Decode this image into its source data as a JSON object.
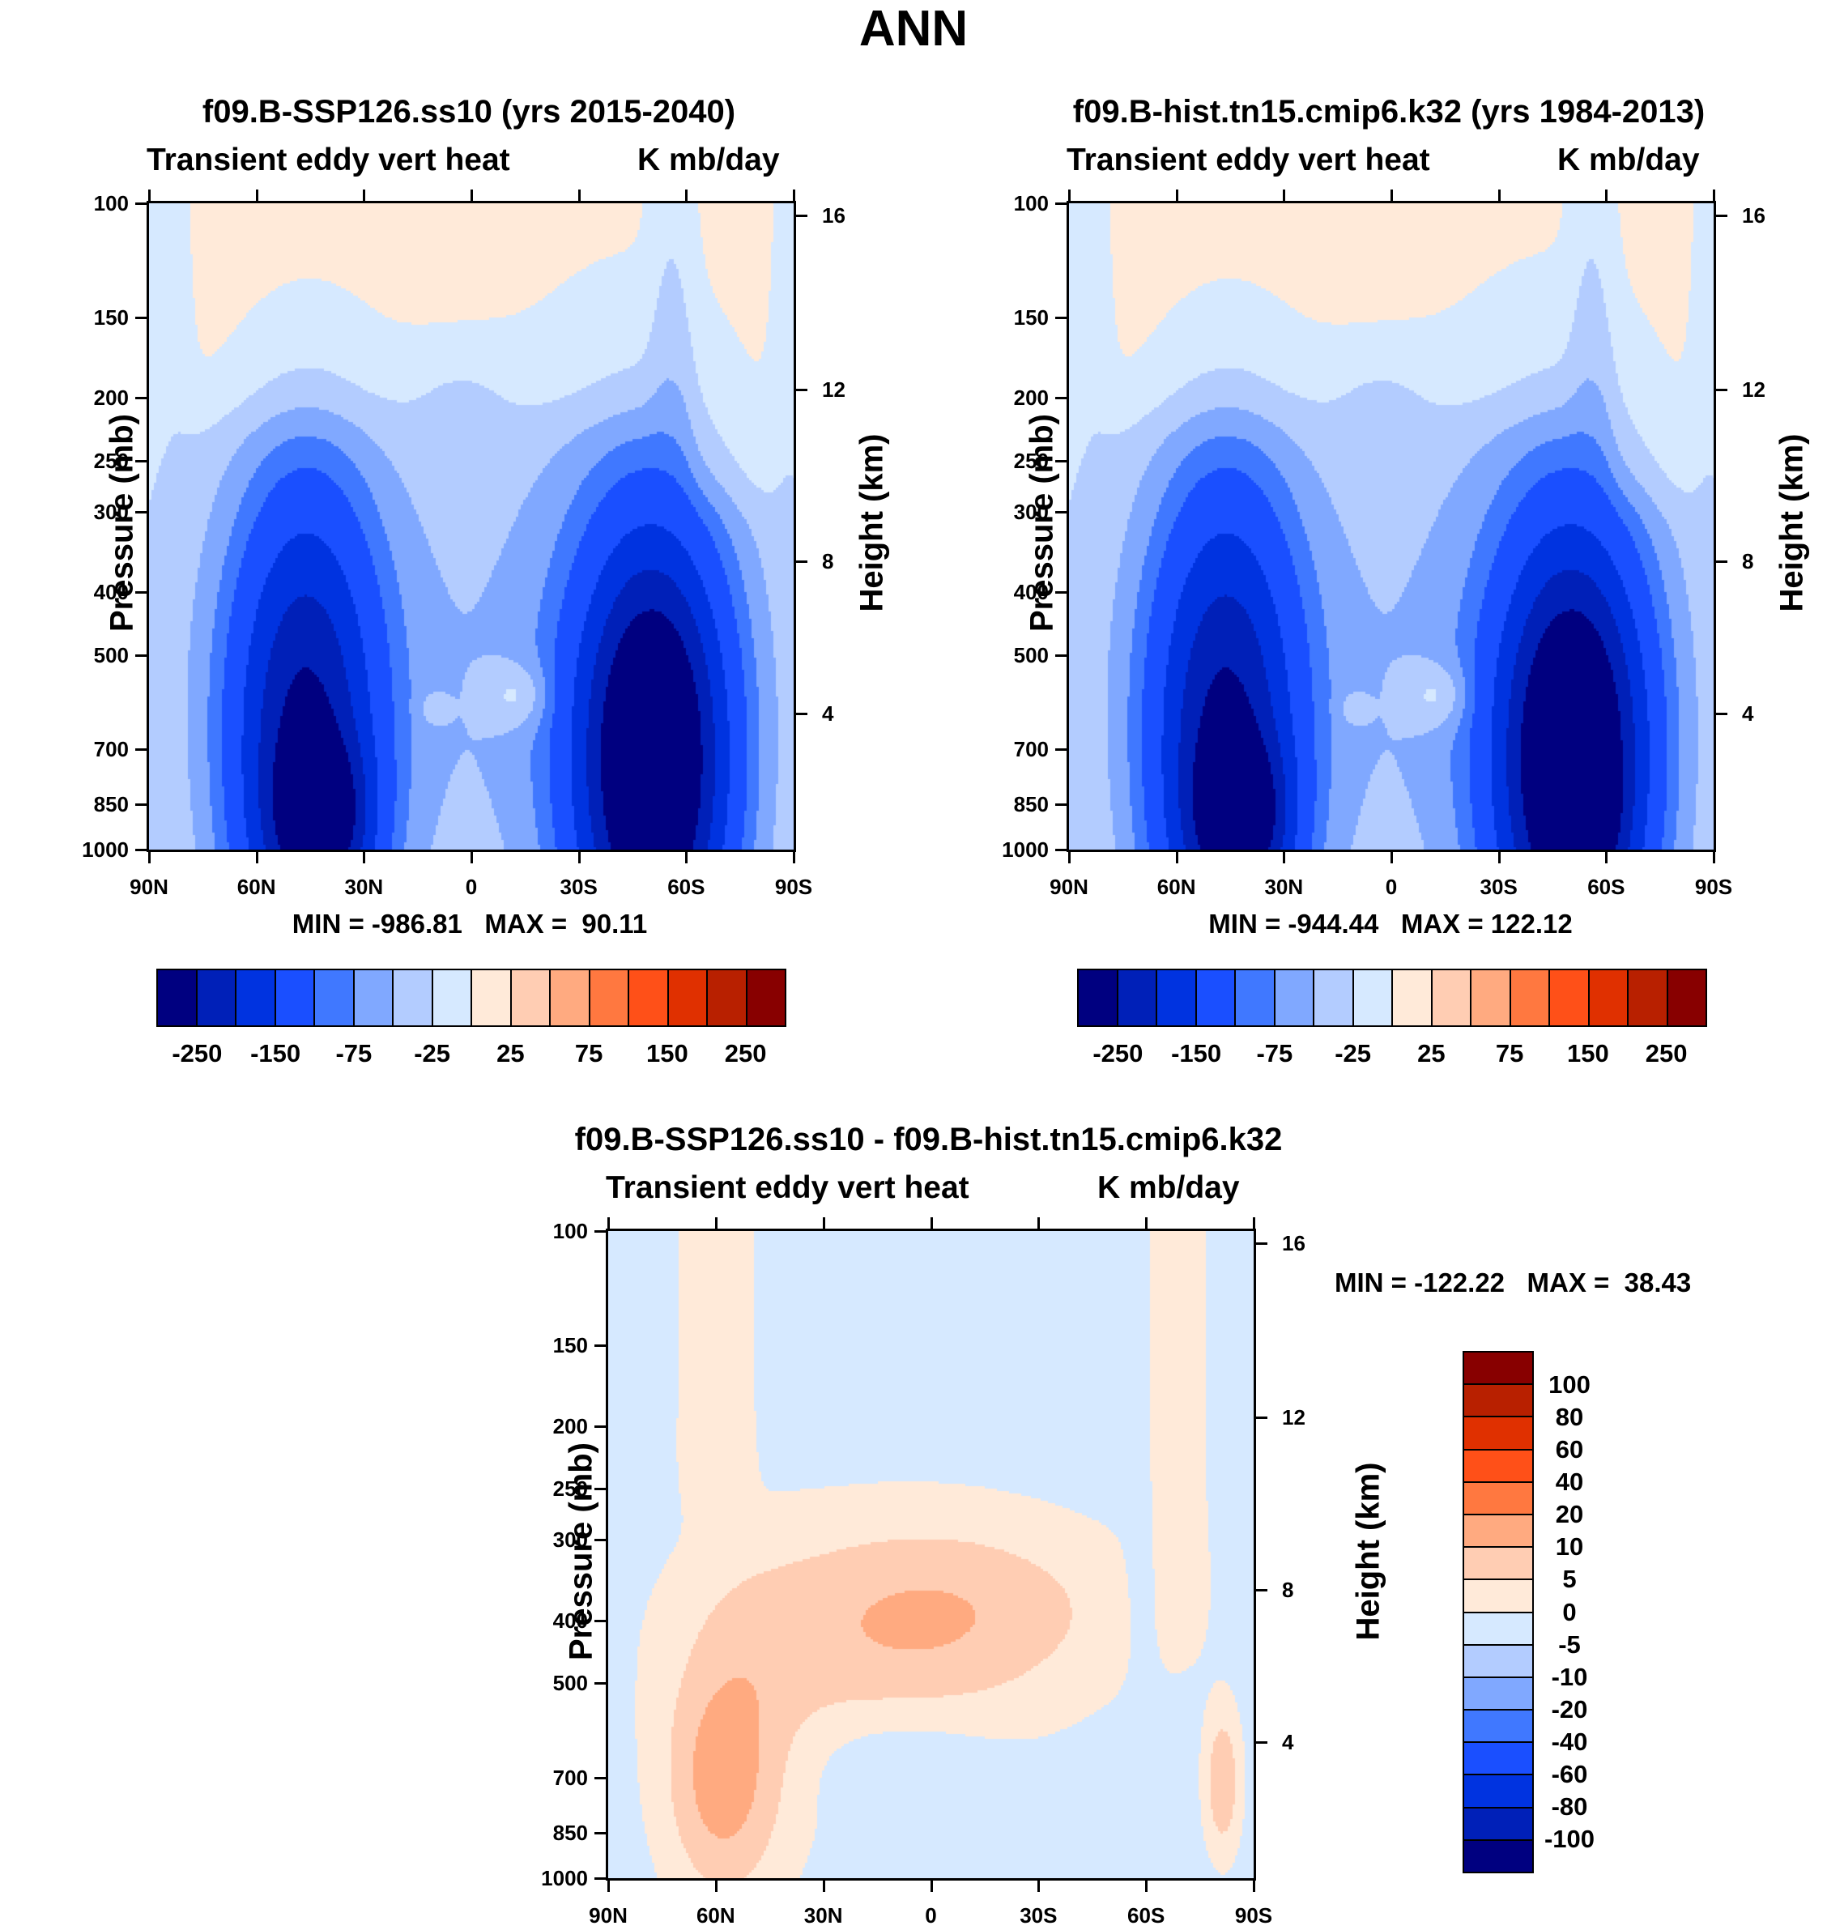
{
  "title": "ANN",
  "colors_pos": [
    "#000080",
    "#0020B8",
    "#0033E0",
    "#1A4FFF",
    "#4078FF",
    "#80A8FF",
    "#B3CCFF",
    "#D6E9FF",
    "#FFEAD9",
    "#FFCDB3",
    "#FFAA80",
    "#FF7840",
    "#FF5018",
    "#E03000",
    "#B82000",
    "#880000"
  ],
  "chart_data": [
    {
      "type": "heatmap",
      "title": "f09.B-SSP126.ss10 (yrs 2015-2040)",
      "left_label": "Transient eddy vert heat",
      "right_label": "K mb/day",
      "ylabel": "Pressure (mb)",
      "y2label": "Height (km)",
      "x_ticks": [
        "90N",
        "60N",
        "30N",
        "0",
        "30S",
        "60S",
        "90S"
      ],
      "y_ticks": [
        "100",
        "150",
        "200",
        "250",
        "300",
        "400",
        "500",
        "700",
        "850",
        "1000"
      ],
      "y2_ticks": [
        "16",
        "12",
        "8",
        "4"
      ],
      "stats": "MIN = -986.81   MAX =  90.11",
      "min": -986.81,
      "max": 90.11,
      "levels": [
        -250,
        -200,
        -150,
        -100,
        -75,
        -50,
        -25,
        0,
        25,
        50,
        75,
        100,
        150,
        200,
        250
      ],
      "colorbar_labels": [
        "-250",
        "-150",
        "-75",
        "-25",
        "25",
        "75",
        "150",
        "250"
      ]
    },
    {
      "type": "heatmap",
      "title": "f09.B-hist.tn15.cmip6.k32 (yrs 1984-2013)",
      "left_label": "Transient eddy vert heat",
      "right_label": "K mb/day",
      "ylabel": "Pressure (mb)",
      "y2label": "Height (km)",
      "x_ticks": [
        "90N",
        "60N",
        "30N",
        "0",
        "30S",
        "60S",
        "90S"
      ],
      "y_ticks": [
        "100",
        "150",
        "200",
        "250",
        "300",
        "400",
        "500",
        "700",
        "850",
        "1000"
      ],
      "y2_ticks": [
        "16",
        "12",
        "8",
        "4"
      ],
      "stats": "MIN = -944.44   MAX = 122.12",
      "min": -944.44,
      "max": 122.12,
      "levels": [
        -250,
        -200,
        -150,
        -100,
        -75,
        -50,
        -25,
        0,
        25,
        50,
        75,
        100,
        150,
        200,
        250
      ],
      "colorbar_labels": [
        "-250",
        "-150",
        "-75",
        "-25",
        "25",
        "75",
        "150",
        "250"
      ]
    },
    {
      "type": "heatmap",
      "title": "f09.B-SSP126.ss10 - f09.B-hist.tn15.cmip6.k32",
      "left_label": "Transient eddy vert heat",
      "right_label": "K mb/day",
      "ylabel": "Pressure (mb)",
      "y2label": "Height (km)",
      "x_ticks": [
        "90N",
        "60N",
        "30N",
        "0",
        "30S",
        "60S",
        "90S"
      ],
      "y_ticks": [
        "100",
        "150",
        "200",
        "250",
        "300",
        "400",
        "500",
        "700",
        "850",
        "1000"
      ],
      "y2_ticks": [
        "16",
        "12",
        "8",
        "4"
      ],
      "stats": "MIN = -122.22   MAX =  38.43",
      "min": -122.22,
      "max": 38.43,
      "levels": [
        -100,
        -80,
        -60,
        -40,
        -20,
        -10,
        -5,
        0,
        5,
        10,
        20,
        40,
        60,
        80,
        100
      ],
      "colorbar_labels": [
        "100",
        "80",
        "60",
        "40",
        "20",
        "10",
        "5",
        "0",
        "-5",
        "-10",
        "-20",
        "-40",
        "-60",
        "-80",
        "-100"
      ]
    }
  ]
}
